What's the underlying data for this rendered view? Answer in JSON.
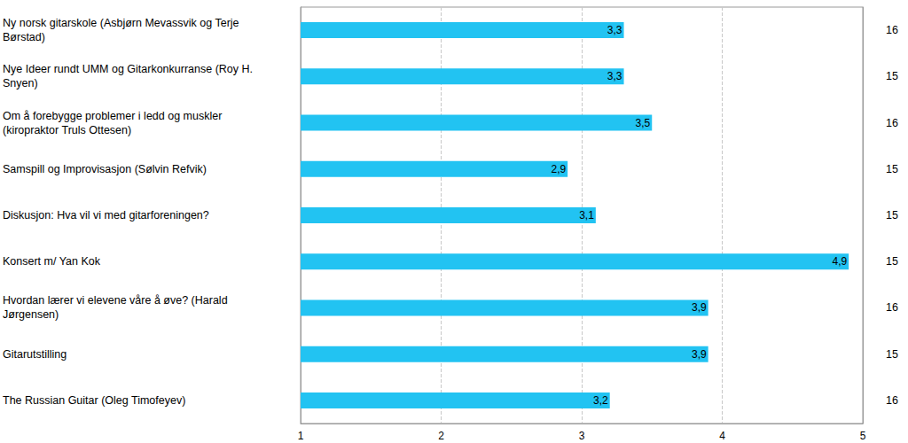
{
  "chart_data": {
    "type": "bar",
    "orientation": "horizontal",
    "categories": [
      "Ny norsk gitarskole (Asbjørn Mevassvik og Terje Børstad)",
      "Nye Ideer rundt UMM og Gitarkonkurranse (Roy H. Snyen)",
      "Om å forebygge problemer i ledd og muskler (kiropraktor Truls Ottesen)",
      "Samspill og Improvisasjon (Sølvin Refvik)",
      "Diskusjon: Hva vil vi med gitarforeningen?",
      "Konsert m/ Yan Kok",
      "Hvordan lærer vi elevene våre å øve? (Harald Jørgensen)",
      "Gitarutstilling",
      "The Russian Guitar (Oleg Timofeyev)"
    ],
    "values": [
      3.3,
      3.3,
      3.5,
      2.9,
      3.1,
      4.9,
      3.9,
      3.9,
      3.2
    ],
    "value_labels": [
      "3,3",
      "3,3",
      "3,5",
      "2,9",
      "3,1",
      "4,9",
      "3,9",
      "3,9",
      "3,2"
    ],
    "counts": [
      16,
      15,
      16,
      15,
      15,
      15,
      16,
      15,
      16
    ],
    "color": "#22c3f2",
    "xlim": [
      1,
      5
    ],
    "xticks": [
      1,
      2,
      3,
      4,
      5
    ],
    "grid": true,
    "data_labels": true
  }
}
